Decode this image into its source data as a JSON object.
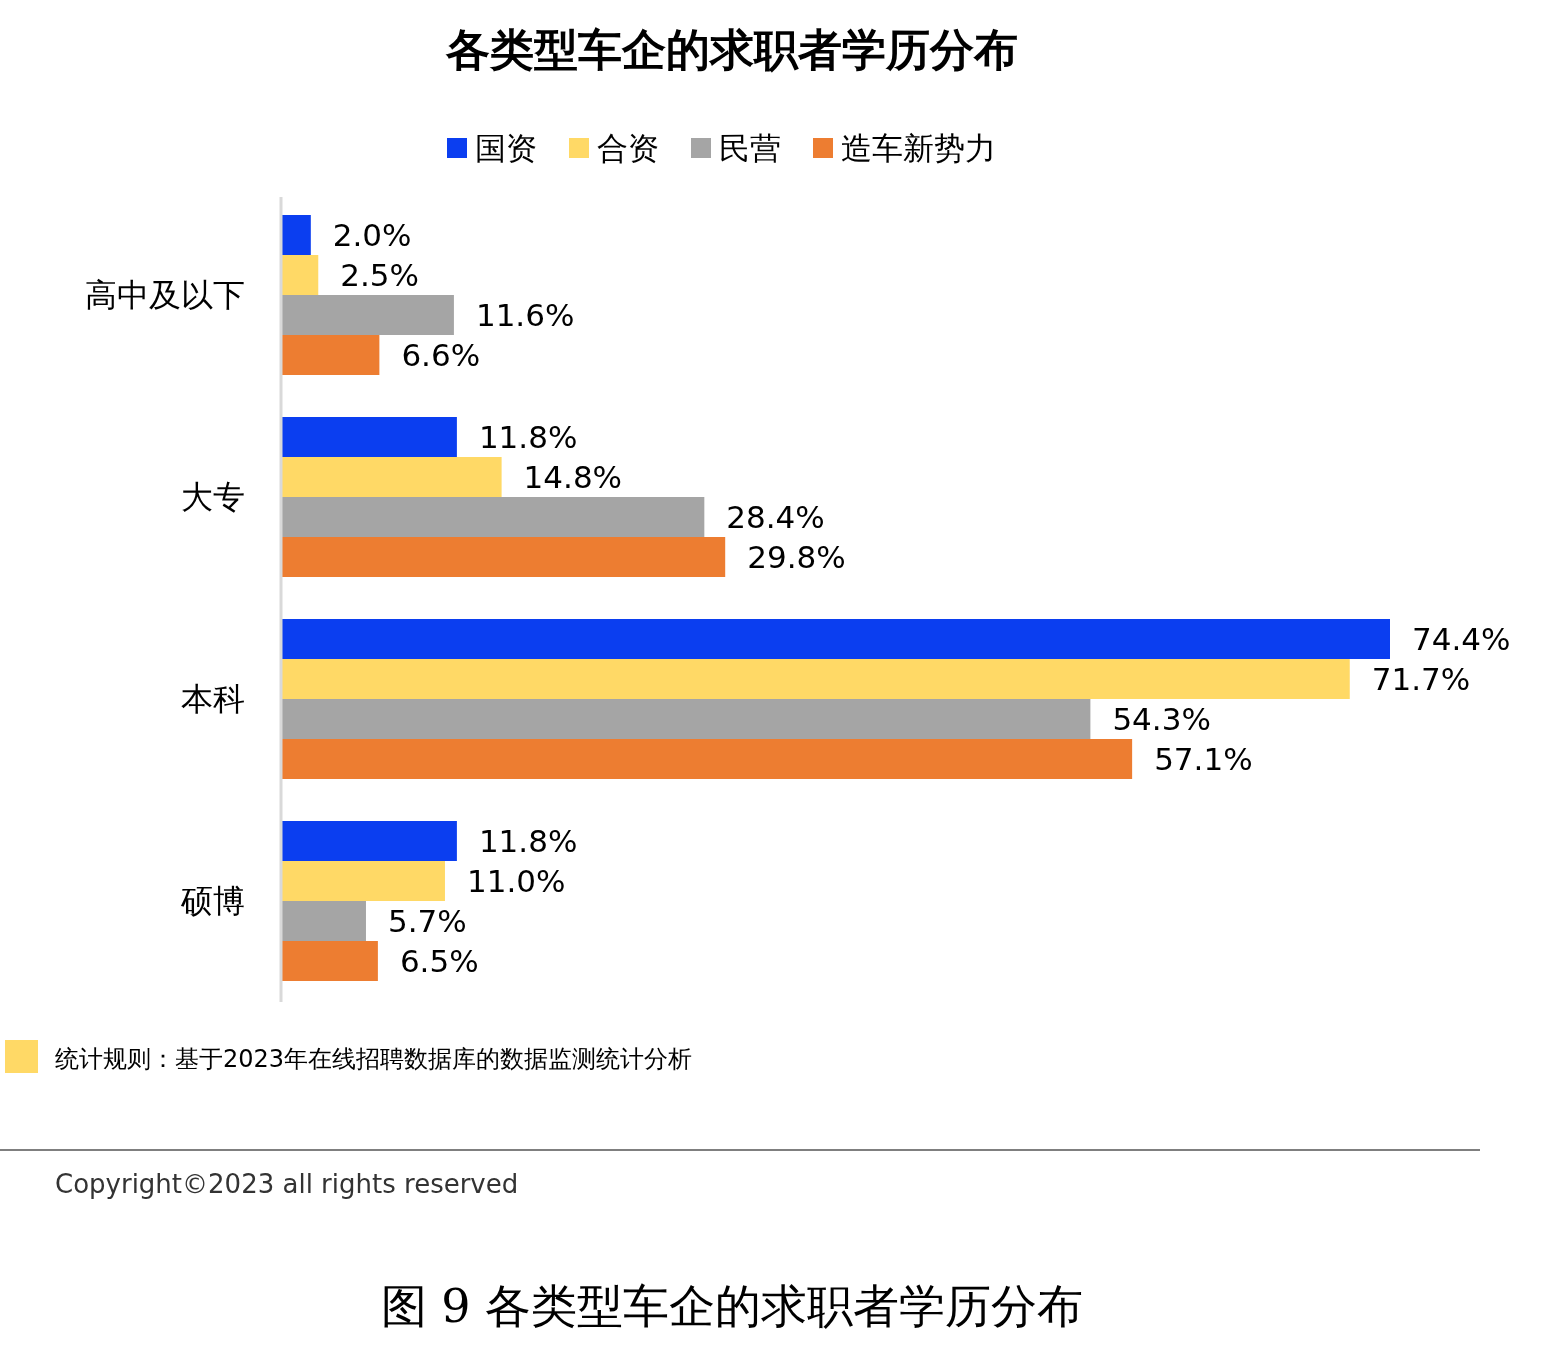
{
  "chart_data": {
    "type": "bar",
    "orientation": "horizontal",
    "title": "各类型车企的求职者学历分布",
    "categories": [
      "高中及以下",
      "大专",
      "本科",
      "硕博"
    ],
    "legend": "top",
    "series": [
      {
        "name": "国资",
        "color": "#0b3ef0",
        "values": [
          2.0,
          11.8,
          74.4,
          11.8
        ],
        "value_labels": [
          "2.0%",
          "11.8%",
          "74.4%",
          "11.8%"
        ]
      },
      {
        "name": "合资",
        "color": "#ffd966",
        "values": [
          2.5,
          14.8,
          71.7,
          11.0
        ],
        "value_labels": [
          "2.5%",
          "14.8%",
          "71.7%",
          "11.0%"
        ]
      },
      {
        "name": "民营",
        "color": "#a5a5a5",
        "values": [
          11.6,
          28.4,
          54.3,
          5.7
        ],
        "value_labels": [
          "11.6%",
          "28.4%",
          "54.3%",
          "5.7%"
        ]
      },
      {
        "name": "造车新势力",
        "color": "#ed7d31",
        "values": [
          6.6,
          29.8,
          57.1,
          6.5
        ],
        "value_labels": [
          "6.6%",
          "29.8%",
          "57.1%",
          "6.5%"
        ]
      }
    ],
    "annotations": [
      "统计规则：基于2023年在线招聘数据库的数据监测统计分析",
      "Copyright©2023 all rights reserved",
      "图 9  各类型车企的求职者学历分布"
    ]
  }
}
